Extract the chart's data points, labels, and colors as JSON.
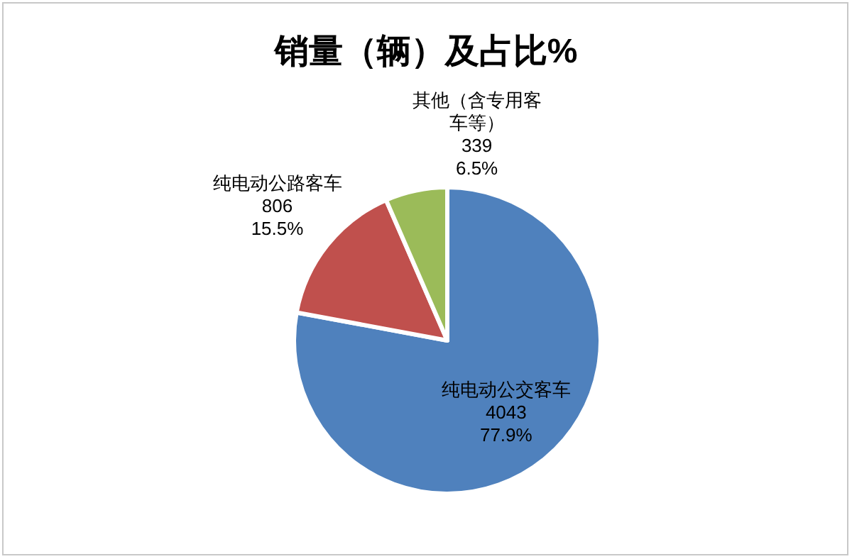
{
  "chart_data": {
    "type": "pie",
    "title": "销量（辆）及占比%",
    "categories": [
      "纯电动公交客车",
      "纯电动公路客车",
      "其他（含专用客车等）"
    ],
    "values": [
      4043,
      806,
      339
    ],
    "colors": [
      "#4f81bd",
      "#c0504d",
      "#9bbb59"
    ],
    "value_labels": [
      "4043\n77.9%",
      "806\n15.5%",
      "339\n6.5%"
    ],
    "legend": false
  }
}
